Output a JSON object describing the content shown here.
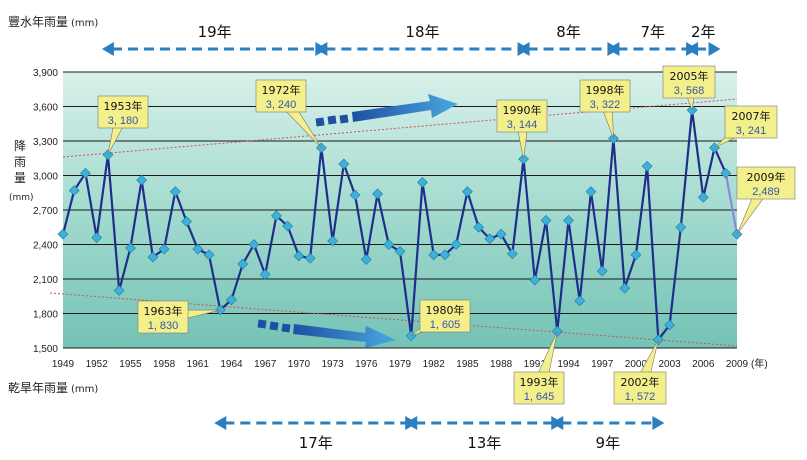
{
  "chart_data": {
    "type": "line",
    "title_top": "豐水年雨量",
    "title_top_unit": "(mm)",
    "title_bottom": "乾旱年雨量",
    "title_bottom_unit": "(mm)",
    "ylabel": "降雨量",
    "ylabel_unit": "(mm)",
    "xunit": "(年)",
    "ylim": [
      1500,
      3900
    ],
    "xlim": [
      1949,
      2009
    ],
    "yticks": [
      "1,500",
      "1,800",
      "2,100",
      "2,400",
      "2,700",
      "3,000",
      "3,300",
      "3,600",
      "3,900"
    ],
    "ytick_values": [
      1500,
      1800,
      2100,
      2400,
      2700,
      3000,
      3300,
      3600,
      3900
    ],
    "xticks": [
      "1949",
      "1952",
      "1955",
      "1958",
      "1961",
      "1964",
      "1967",
      "1970",
      "1973",
      "1976",
      "1979",
      "1982",
      "1985",
      "1988",
      "1991",
      "1994",
      "1997",
      "2000",
      "2003",
      "2006",
      "2009"
    ],
    "xtick_values": [
      1949,
      1952,
      1955,
      1958,
      1961,
      1964,
      1967,
      1970,
      1973,
      1976,
      1979,
      1982,
      1985,
      1988,
      1991,
      1994,
      1997,
      2000,
      2003,
      2006,
      2009
    ],
    "grid": true,
    "series": [
      {
        "x": [
          1949,
          1950,
          1951,
          1952,
          1953,
          1954,
          1955,
          1956,
          1957,
          1958,
          1959,
          1960,
          1961,
          1962,
          1963,
          1964,
          1965,
          1966,
          1967,
          1968,
          1969,
          1970,
          1971,
          1972,
          1973,
          1974,
          1975,
          1976,
          1977,
          1978,
          1979,
          1980,
          1981,
          1982,
          1983,
          1984,
          1985,
          1986,
          1987,
          1988,
          1989,
          1990,
          1991,
          1992,
          1993,
          1994,
          1995,
          1996,
          1997,
          1998,
          1999,
          2000,
          2001,
          2002,
          2003,
          2004,
          2005,
          2006,
          2007,
          2008
        ],
        "values": [
          2490,
          2870,
          3020,
          2460,
          3180,
          2000,
          2370,
          2960,
          2290,
          2360,
          2860,
          2600,
          2360,
          2310,
          1830,
          1920,
          2230,
          2400,
          2140,
          2650,
          2560,
          2300,
          2280,
          3240,
          2430,
          3100,
          2830,
          2270,
          2840,
          2400,
          2340,
          1605,
          2940,
          2310,
          2310,
          2400,
          2860,
          2550,
          2450,
          2490,
          2320,
          3144,
          2090,
          2610,
          1645,
          2610,
          1910,
          2860,
          2170,
          3322,
          2020,
          2310,
          3080,
          1572,
          1700,
          2550,
          3568,
          2810,
          3241,
          3020
        ]
      },
      {
        "x": [
          2008,
          2009
        ],
        "values": [
          3020,
          2489
        ]
      }
    ],
    "annotations": [
      {
        "year": "1953年",
        "value": "3, 180"
      },
      {
        "year": "1972年",
        "value": "3, 240"
      },
      {
        "year": "1990年",
        "value": "3, 144"
      },
      {
        "year": "1998年",
        "value": "3, 322"
      },
      {
        "year": "2005年",
        "value": "3, 568"
      },
      {
        "year": "2007年",
        "value": "3, 241"
      },
      {
        "year": "2009年",
        "value": "2,489"
      },
      {
        "year": "1963年",
        "value": "1, 830"
      },
      {
        "year": "1980年",
        "value": "1, 605"
      },
      {
        "year": "1993年",
        "value": "1, 645"
      },
      {
        "year": "2002年",
        "value": "1, 572"
      }
    ],
    "wet_year_spans": [
      "19年",
      "18年",
      "8年",
      "7年",
      "2年"
    ],
    "dry_year_spans": [
      "17年",
      "13年",
      "9年"
    ]
  },
  "colors": {
    "line": "#1f2e8a",
    "marker": "#3fb0d8",
    "last_segment": "#8a8ad8",
    "trend": "#d05050",
    "span_arrow": "#2a7fc0",
    "callout_bg": "#f3f08c",
    "plot_top": "#c9ece4",
    "plot_bottom": "#7cc8be"
  }
}
